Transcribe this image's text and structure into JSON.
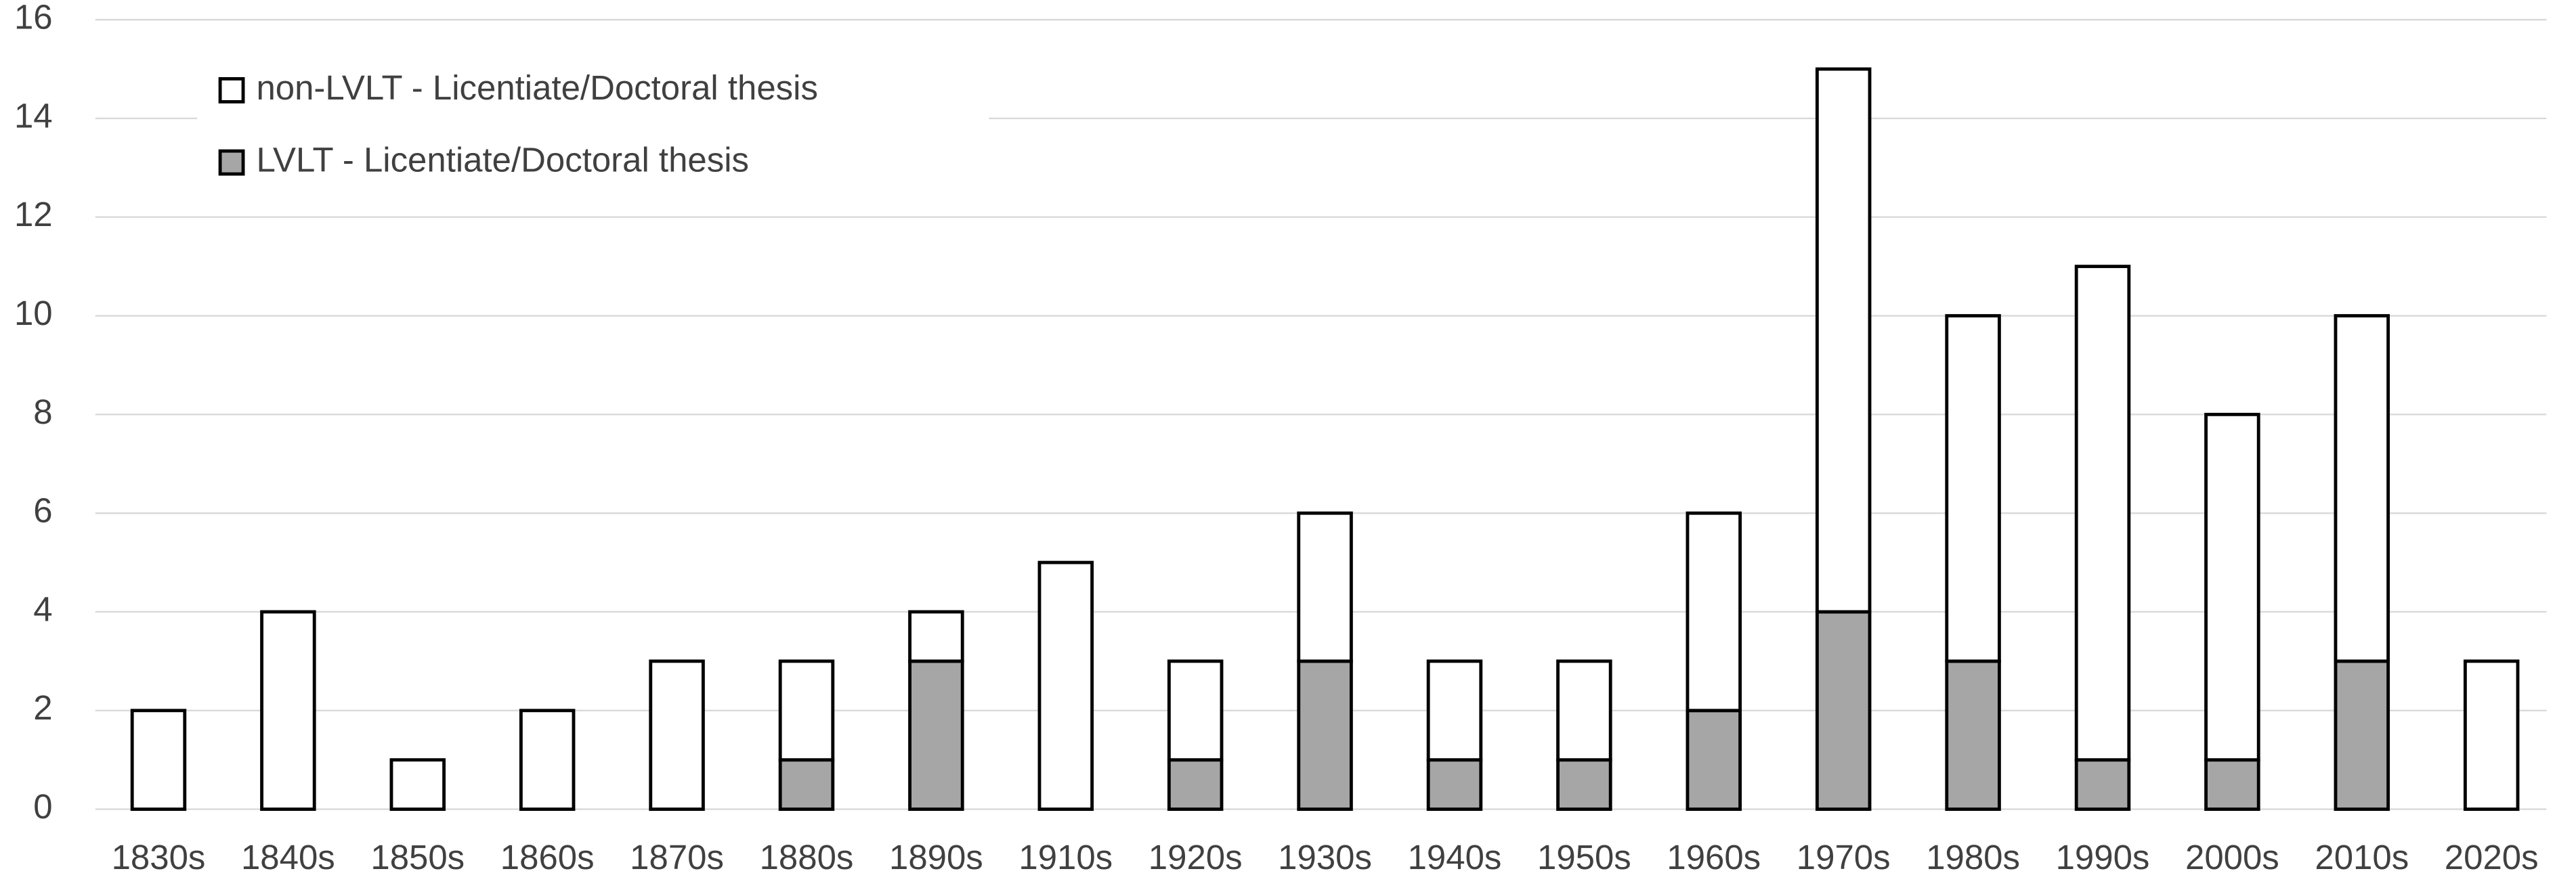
{
  "chart_data": {
    "type": "stacked-bar",
    "categories": [
      "1830s",
      "1840s",
      "1850s",
      "1860s",
      "1870s",
      "1880s",
      "1890s",
      "1910s",
      "1920s",
      "1930s",
      "1940s",
      "1950s",
      "1960s",
      "1970s",
      "1980s",
      "1990s",
      "2000s",
      "2010s",
      "2020s"
    ],
    "series": [
      {
        "name": "LVLT - Licentiate/Doctoral thesis",
        "color": "#a6a6a6",
        "values": [
          0,
          0,
          0,
          0,
          0,
          1,
          3,
          0,
          1,
          3,
          1,
          1,
          2,
          4,
          3,
          1,
          1,
          3,
          0
        ]
      },
      {
        "name": "non-LVLT - Licentiate/Doctoral thesis",
        "color": "#ffffff",
        "values": [
          2,
          4,
          1,
          2,
          3,
          2,
          1,
          5,
          2,
          3,
          2,
          2,
          4,
          11,
          7,
          10,
          7,
          7,
          3
        ]
      }
    ],
    "ylim": [
      0,
      16
    ],
    "yticks": [
      0,
      2,
      4,
      6,
      8,
      10,
      12,
      14,
      16
    ],
    "grid": true,
    "legend": "upper left"
  }
}
